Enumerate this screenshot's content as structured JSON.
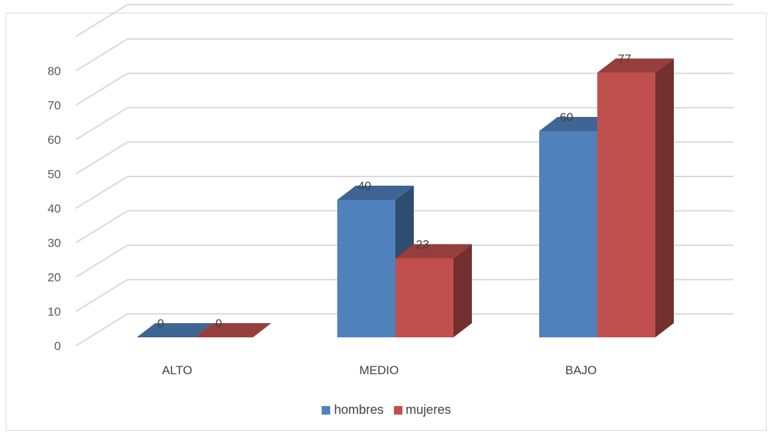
{
  "chart_data": {
    "type": "bar",
    "style": "3d-clustered-column",
    "categories": [
      "ALTO",
      "MEDIO",
      "BAJO"
    ],
    "series": [
      {
        "name": "hombres",
        "values": [
          0,
          40,
          60
        ],
        "color": "#4f81bd"
      },
      {
        "name": "mujeres",
        "values": [
          0,
          23,
          77
        ],
        "color": "#c0504d"
      }
    ],
    "ylim": [
      0,
      80
    ],
    "yticks": [
      0,
      10,
      20,
      30,
      40,
      50,
      60,
      70,
      80
    ],
    "grid": true,
    "legend": "bottom",
    "data_labels": true
  }
}
